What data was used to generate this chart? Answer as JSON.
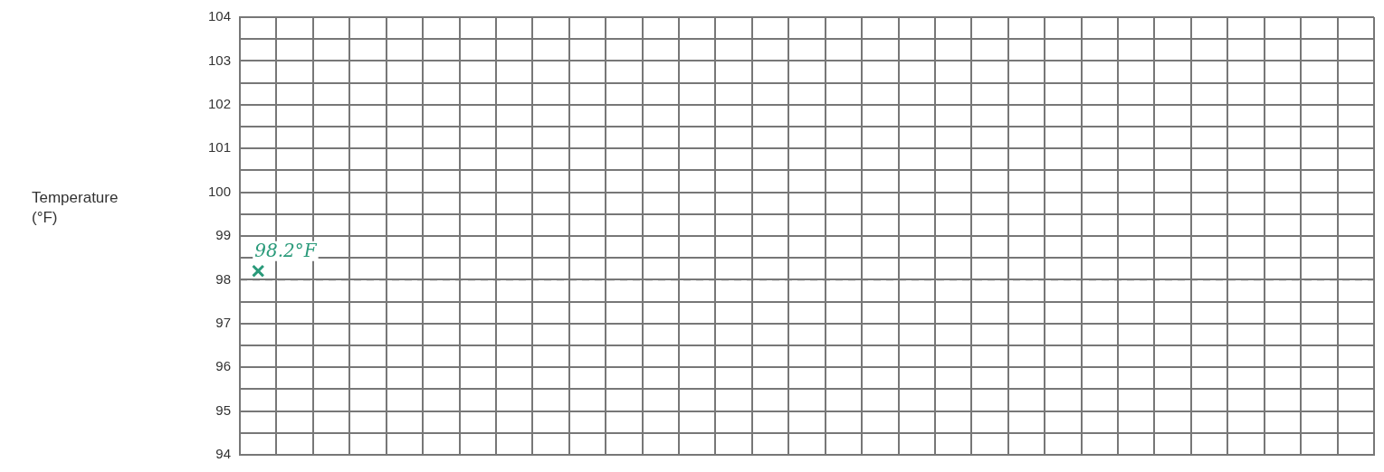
{
  "chart_data": {
    "type": "line",
    "categories": [
      null,
      null,
      null,
      null,
      null,
      null,
      null,
      null,
      null,
      null,
      null,
      null,
      null,
      null,
      null,
      null,
      null,
      null,
      null,
      null,
      null,
      null,
      null,
      null,
      null,
      null,
      null,
      null,
      null,
      null,
      null
    ],
    "ylim": [
      94,
      104
    ],
    "yticks": [
      94,
      {
        "value": 94.5,
        "label": null
      },
      95,
      {
        "value": 95.5,
        "label": null
      },
      96,
      {
        "value": 96.5,
        "label": null
      },
      97,
      {
        "value": 97.5,
        "label": null
      },
      98,
      {
        "value": 98.5,
        "label": null
      },
      99,
      {
        "value": 99.5,
        "label": null
      },
      100,
      {
        "value": 100.5,
        "label": null
      },
      101,
      {
        "value": 101.5,
        "label": null
      },
      102,
      {
        "value": 102.5,
        "label": null
      },
      103,
      {
        "value": 103.5,
        "label": null
      },
      104
    ],
    "tick_labels": "y",
    "grid": true,
    "marker": "cross",
    "series": [
      {
        "color": "#2a9a7a",
        "values": [
          98.2,
          null,
          null,
          null,
          null,
          null,
          null,
          null,
          null,
          null,
          null,
          null,
          null,
          null,
          null,
          null,
          null,
          null,
          null,
          null,
          null,
          null,
          null,
          null,
          null,
          null,
          null,
          null,
          null,
          null,
          null
        ]
      }
    ],
    "ref_lines": [
      {
        "axis": "y",
        "value": 98,
        "color": "#777777",
        "line_style": "dashed"
      }
    ],
    "annotations": [
      "Temperature (°F)",
      "98.2°F"
    ]
  }
}
